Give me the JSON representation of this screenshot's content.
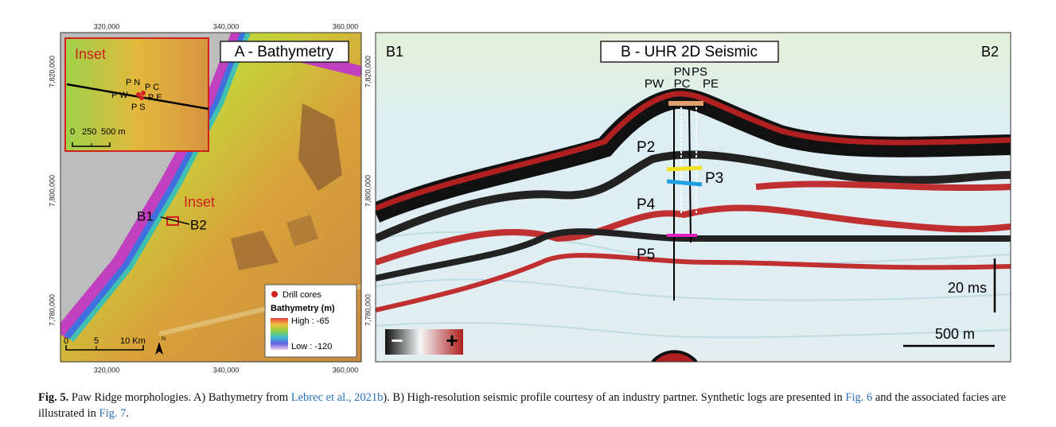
{
  "panel_a": {
    "title": "A - Bathymetry",
    "x_ticks_top": [
      "320,000",
      "340,000",
      "360,000"
    ],
    "x_ticks_bottom": [
      "320,000",
      "340,000",
      "360,000"
    ],
    "y_ticks_left": [
      "7,820,000",
      "7,800,000",
      "7,780,000"
    ],
    "y_ticks_right": [
      "7,820,000",
      "7,800,000",
      "7,780,000"
    ],
    "inset": {
      "title": "Inset",
      "wells": [
        "P N",
        "P C",
        "P W",
        "P E",
        "P S"
      ],
      "scale": [
        "0",
        "250",
        "500 m"
      ]
    },
    "inset_label": "Inset",
    "profile_ends": [
      "B1",
      "B2"
    ],
    "legend": {
      "points": "Drill cores",
      "title": "Bathymetry (m)",
      "high": "High : -65",
      "low": "Low : -120"
    },
    "scale": [
      "0",
      "5",
      "10 Km"
    ],
    "north": "N"
  },
  "panel_b": {
    "title": "B - UHR 2D Seismic",
    "ends": [
      "B1",
      "B2"
    ],
    "wells_top": [
      "PN",
      "PS"
    ],
    "wells_bottom": [
      "PW",
      "PC",
      "PE"
    ],
    "units": [
      "P2",
      "P3",
      "P4",
      "P5"
    ],
    "vertical_scale": "20 ms",
    "horizontal_scale": "500 m",
    "polarity": [
      "−",
      "+"
    ]
  },
  "caption": {
    "label": "Fig. 5.",
    "segments": [
      {
        "text": " Paw Ridge morphologies. A) Bathymetry from "
      },
      {
        "text": "Lebrec et al., 2021b",
        "link": true
      },
      {
        "text": "). B) High-resolution seismic profile courtesy of an industry partner. Synthetic logs are presented in "
      },
      {
        "text": "Fig. 6",
        "link": true
      },
      {
        "text": " and the associated facies are illustrated in "
      },
      {
        "text": "Fig. 7",
        "link": true
      },
      {
        "text": "."
      }
    ]
  }
}
